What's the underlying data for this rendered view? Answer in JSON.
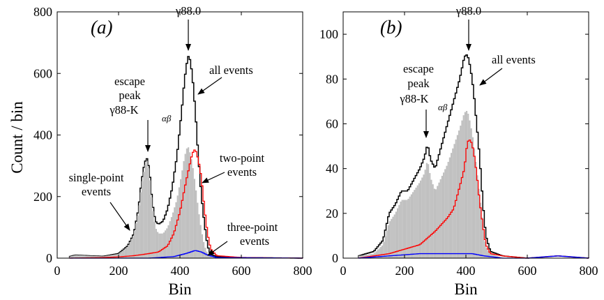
{
  "figure": {
    "panels": [
      {
        "panel_label": "(a)",
        "ylabel": "Count / bin",
        "xlabel": "Bin",
        "xticks": [
          "0",
          "200",
          "400",
          "600",
          "800"
        ],
        "yticks": [
          "0",
          "200",
          "400",
          "600",
          "800"
        ],
        "annotations": {
          "gamma": "γ88.0",
          "all_events": "all events",
          "escape_line1": "escape",
          "escape_line2": "peak",
          "escape_line3": "γ88-K",
          "escape_sub": "αβ",
          "two_point_line1": "two-point",
          "two_point_line2": "events",
          "single_point_line1": "single-point",
          "single_point_line2": "events",
          "three_point_line1": "three-point",
          "three_point_line2": "events"
        }
      },
      {
        "panel_label": "(b)",
        "ylabel": "",
        "xlabel": "Bin",
        "xticks": [
          "0",
          "200",
          "400",
          "600",
          "800"
        ],
        "yticks": [
          "0",
          "20",
          "40",
          "60",
          "80",
          "100"
        ],
        "annotations": {
          "gamma": "γ88.0",
          "all_events": "all events",
          "escape_line1": "escape",
          "escape_line2": "peak",
          "escape_line3": "γ88-K",
          "escape_sub": "αβ"
        }
      }
    ]
  },
  "chart_data": [
    {
      "type": "area",
      "panel": "(a)",
      "xlabel": "Bin",
      "ylabel": "Count / bin",
      "xlim": [
        0,
        800
      ],
      "ylim": [
        0,
        800
      ],
      "grid": false,
      "series": [
        {
          "name": "all events",
          "color": "#000000",
          "x": [
            40,
            60,
            100,
            150,
            200,
            230,
            250,
            265,
            275,
            285,
            292,
            300,
            310,
            320,
            330,
            345,
            360,
            375,
            390,
            405,
            415,
            425,
            430,
            440,
            450,
            460,
            470,
            480,
            490,
            500,
            520,
            560,
            600,
            700,
            800
          ],
          "y": [
            5,
            10,
            8,
            6,
            15,
            40,
            80,
            160,
            250,
            310,
            325,
            290,
            180,
            120,
            110,
            120,
            160,
            230,
            330,
            470,
            580,
            650,
            660,
            600,
            480,
            330,
            200,
            110,
            40,
            12,
            5,
            3,
            2,
            1,
            0
          ]
        },
        {
          "name": "single-point events",
          "color": "#c0c0c0",
          "x": [
            40,
            60,
            100,
            150,
            200,
            230,
            250,
            265,
            275,
            285,
            292,
            300,
            310,
            320,
            330,
            345,
            360,
            375,
            390,
            405,
            415,
            425,
            430,
            440,
            450,
            460,
            470,
            480,
            490,
            500,
            520,
            560,
            600,
            700,
            800
          ],
          "y": [
            5,
            10,
            8,
            6,
            14,
            38,
            76,
            150,
            235,
            295,
            318,
            280,
            170,
            100,
            80,
            80,
            100,
            140,
            190,
            270,
            330,
            365,
            355,
            310,
            240,
            160,
            90,
            40,
            15,
            5,
            2,
            1,
            1,
            0,
            0
          ]
        },
        {
          "name": "two-point events",
          "color": "#ff0000",
          "x": [
            40,
            100,
            150,
            200,
            250,
            280,
            300,
            330,
            360,
            380,
            400,
            420,
            440,
            450,
            460,
            470,
            480,
            490,
            500,
            520,
            600,
            800
          ],
          "y": [
            0,
            1,
            2,
            4,
            8,
            12,
            15,
            20,
            40,
            80,
            150,
            250,
            340,
            355,
            320,
            260,
            160,
            80,
            30,
            8,
            2,
            0
          ]
        },
        {
          "name": "three-point events",
          "color": "#0000ff",
          "x": [
            40,
            200,
            300,
            380,
            420,
            450,
            470,
            490,
            520,
            800
          ],
          "y": [
            0,
            0,
            0,
            5,
            15,
            25,
            20,
            10,
            2,
            0
          ]
        }
      ],
      "annotations": [
        "γ88.0",
        "all events",
        "escape peak γ88-Kαβ",
        "two-point events",
        "single-point events",
        "three-point events"
      ]
    },
    {
      "type": "area",
      "panel": "(b)",
      "xlabel": "Bin",
      "ylabel": "",
      "xlim": [
        0,
        800
      ],
      "ylim": [
        0,
        110
      ],
      "grid": false,
      "series": [
        {
          "name": "all events",
          "color": "#000000",
          "x": [
            50,
            100,
            130,
            150,
            170,
            190,
            210,
            230,
            250,
            265,
            275,
            285,
            300,
            320,
            340,
            360,
            380,
            395,
            405,
            415,
            425,
            435,
            445,
            455,
            465,
            480,
            520,
            600,
            700,
            800
          ],
          "y": [
            1,
            3,
            8,
            20,
            24,
            30,
            30,
            35,
            40,
            45,
            51,
            44,
            40,
            50,
            60,
            70,
            80,
            90,
            91,
            85,
            75,
            60,
            45,
            25,
            10,
            3,
            1,
            0,
            1,
            0
          ]
        },
        {
          "name": "single-point events",
          "color": "#c0c0c0",
          "x": [
            50,
            100,
            130,
            150,
            170,
            190,
            210,
            230,
            250,
            265,
            275,
            285,
            300,
            320,
            340,
            360,
            380,
            395,
            405,
            415,
            425,
            435,
            445,
            455,
            465,
            480,
            520,
            600,
            800
          ],
          "y": [
            1,
            2,
            6,
            16,
            20,
            26,
            26,
            30,
            34,
            38,
            44,
            36,
            30,
            36,
            42,
            50,
            58,
            65,
            66,
            60,
            52,
            40,
            28,
            15,
            5,
            2,
            0,
            0,
            0
          ]
        },
        {
          "name": "two-point events",
          "color": "#ff0000",
          "x": [
            50,
            150,
            200,
            250,
            300,
            340,
            360,
            380,
            395,
            405,
            415,
            425,
            435,
            445,
            455,
            465,
            480,
            520,
            600,
            700,
            800
          ],
          "y": [
            0,
            2,
            4,
            6,
            12,
            18,
            22,
            32,
            40,
            52,
            53,
            48,
            38,
            25,
            15,
            6,
            2,
            1,
            0,
            1,
            0
          ]
        },
        {
          "name": "three-point events",
          "color": "#0000ff",
          "x": [
            50,
            150,
            250,
            350,
            420,
            460,
            520,
            600,
            700,
            800
          ],
          "y": [
            0,
            1,
            2,
            2,
            2,
            1,
            0,
            0,
            1,
            0
          ]
        }
      ],
      "annotations": [
        "γ88.0",
        "all events",
        "escape peak γ88-Kαβ"
      ]
    }
  ]
}
